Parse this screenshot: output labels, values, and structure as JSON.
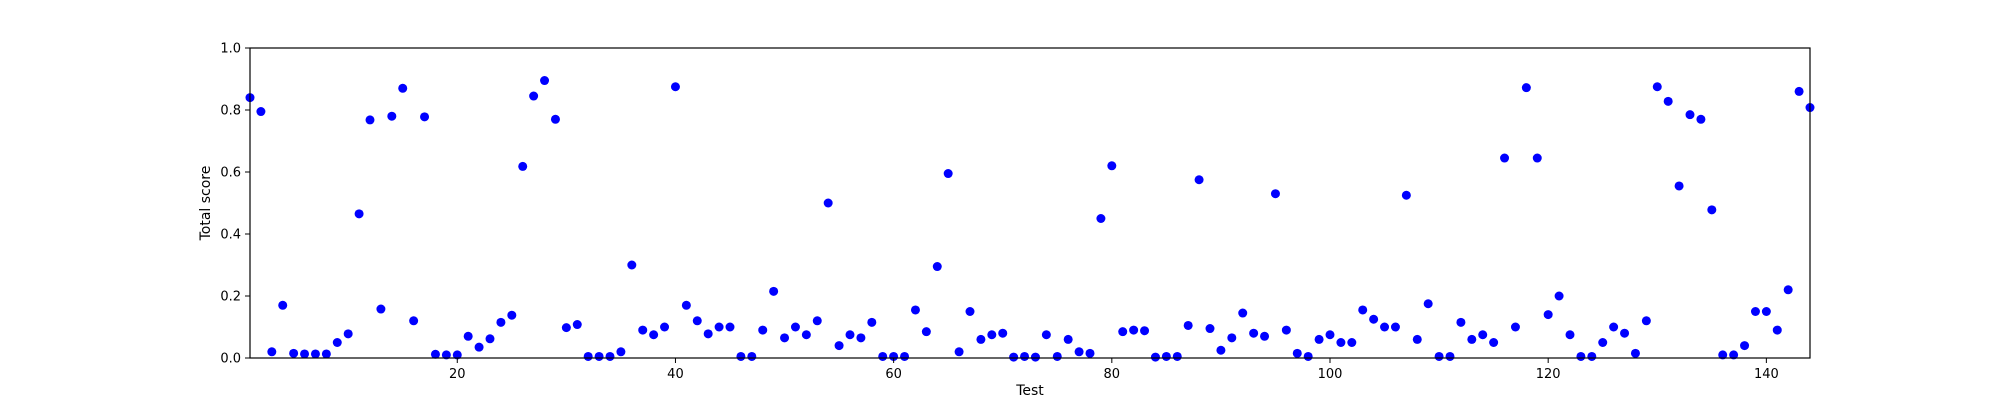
{
  "chart_data": {
    "type": "scatter",
    "xlabel": "Test",
    "ylabel": "Total score",
    "xlim": [
      1,
      144
    ],
    "ylim": [
      0.0,
      1.0
    ],
    "grid": false,
    "x_ticks": [
      20,
      40,
      60,
      80,
      100,
      120,
      140
    ],
    "y_ticks": [
      0.0,
      0.2,
      0.4,
      0.6,
      0.8,
      1.0
    ],
    "x_tick_labels": [
      "20",
      "40",
      "60",
      "80",
      "100",
      "120",
      "140"
    ],
    "y_tick_labels": [
      "0.0",
      "0.2",
      "0.4",
      "0.6",
      "0.8",
      "1.0"
    ],
    "marker_color": "#0000ff",
    "series": [
      {
        "points": [
          [
            1,
            0.84
          ],
          [
            2,
            0.795
          ],
          [
            3,
            0.02
          ],
          [
            4,
            0.17
          ],
          [
            5,
            0.015
          ],
          [
            6,
            0.013
          ],
          [
            7,
            0.013
          ],
          [
            8,
            0.013
          ],
          [
            9,
            0.05
          ],
          [
            10,
            0.078
          ],
          [
            11,
            0.465
          ],
          [
            12,
            0.768
          ],
          [
            13,
            0.158
          ],
          [
            14,
            0.78
          ],
          [
            15,
            0.87
          ],
          [
            16,
            0.12
          ],
          [
            17,
            0.778
          ],
          [
            18,
            0.012
          ],
          [
            19,
            0.01
          ],
          [
            20,
            0.01
          ],
          [
            21,
            0.07
          ],
          [
            22,
            0.035
          ],
          [
            23,
            0.062
          ],
          [
            24,
            0.115
          ],
          [
            25,
            0.138
          ],
          [
            26,
            0.618
          ],
          [
            27,
            0.845
          ],
          [
            28,
            0.895
          ],
          [
            29,
            0.77
          ],
          [
            30,
            0.098
          ],
          [
            31,
            0.108
          ],
          [
            32,
            0.005
          ],
          [
            33,
            0.005
          ],
          [
            34,
            0.005
          ],
          [
            35,
            0.02
          ],
          [
            36,
            0.3
          ],
          [
            37,
            0.09
          ],
          [
            38,
            0.075
          ],
          [
            39,
            0.1
          ],
          [
            40,
            0.875
          ],
          [
            41,
            0.17
          ],
          [
            42,
            0.12
          ],
          [
            43,
            0.078
          ],
          [
            44,
            0.1
          ],
          [
            45,
            0.1
          ],
          [
            46,
            0.005
          ],
          [
            47,
            0.005
          ],
          [
            48,
            0.09
          ],
          [
            49,
            0.215
          ],
          [
            50,
            0.065
          ],
          [
            51,
            0.1
          ],
          [
            52,
            0.075
          ],
          [
            53,
            0.12
          ],
          [
            54,
            0.5
          ],
          [
            55,
            0.04
          ],
          [
            56,
            0.075
          ],
          [
            57,
            0.065
          ],
          [
            58,
            0.115
          ],
          [
            59,
            0.005
          ],
          [
            60,
            0.005
          ],
          [
            61,
            0.005
          ],
          [
            62,
            0.155
          ],
          [
            63,
            0.085
          ],
          [
            64,
            0.295
          ],
          [
            65,
            0.595
          ],
          [
            66,
            0.02
          ],
          [
            67,
            0.15
          ],
          [
            68,
            0.06
          ],
          [
            69,
            0.075
          ],
          [
            70,
            0.08
          ],
          [
            71,
            0.003
          ],
          [
            72,
            0.005
          ],
          [
            73,
            0.003
          ],
          [
            74,
            0.075
          ],
          [
            75,
            0.005
          ],
          [
            76,
            0.06
          ],
          [
            77,
            0.02
          ],
          [
            78,
            0.015
          ],
          [
            79,
            0.45
          ],
          [
            80,
            0.62
          ],
          [
            81,
            0.085
          ],
          [
            82,
            0.09
          ],
          [
            83,
            0.088
          ],
          [
            84,
            0.003
          ],
          [
            85,
            0.005
          ],
          [
            86,
            0.005
          ],
          [
            87,
            0.105
          ],
          [
            88,
            0.575
          ],
          [
            89,
            0.095
          ],
          [
            90,
            0.025
          ],
          [
            91,
            0.065
          ],
          [
            92,
            0.145
          ],
          [
            93,
            0.08
          ],
          [
            94,
            0.07
          ],
          [
            95,
            0.53
          ],
          [
            96,
            0.09
          ],
          [
            97,
            0.015
          ],
          [
            98,
            0.005
          ],
          [
            99,
            0.06
          ],
          [
            100,
            0.075
          ],
          [
            101,
            0.05
          ],
          [
            102,
            0.05
          ],
          [
            103,
            0.155
          ],
          [
            104,
            0.125
          ],
          [
            105,
            0.1
          ],
          [
            106,
            0.1
          ],
          [
            107,
            0.525
          ],
          [
            108,
            0.06
          ],
          [
            109,
            0.175
          ],
          [
            110,
            0.005
          ],
          [
            111,
            0.005
          ],
          [
            112,
            0.115
          ],
          [
            113,
            0.06
          ],
          [
            114,
            0.075
          ],
          [
            115,
            0.05
          ],
          [
            116,
            0.645
          ],
          [
            117,
            0.1
          ],
          [
            118,
            0.872
          ],
          [
            119,
            0.645
          ],
          [
            120,
            0.14
          ],
          [
            121,
            0.2
          ],
          [
            122,
            0.075
          ],
          [
            123,
            0.005
          ],
          [
            124,
            0.005
          ],
          [
            125,
            0.05
          ],
          [
            126,
            0.1
          ],
          [
            127,
            0.08
          ],
          [
            128,
            0.015
          ],
          [
            129,
            0.12
          ],
          [
            130,
            0.875
          ],
          [
            131,
            0.828
          ],
          [
            132,
            0.555
          ],
          [
            133,
            0.785
          ],
          [
            134,
            0.77
          ],
          [
            135,
            0.478
          ],
          [
            136,
            0.01
          ],
          [
            137,
            0.01
          ],
          [
            138,
            0.04
          ],
          [
            139,
            0.15
          ],
          [
            140,
            0.15
          ],
          [
            141,
            0.09
          ],
          [
            142,
            0.22
          ],
          [
            143,
            0.86
          ],
          [
            144,
            0.808
          ]
        ]
      }
    ]
  }
}
